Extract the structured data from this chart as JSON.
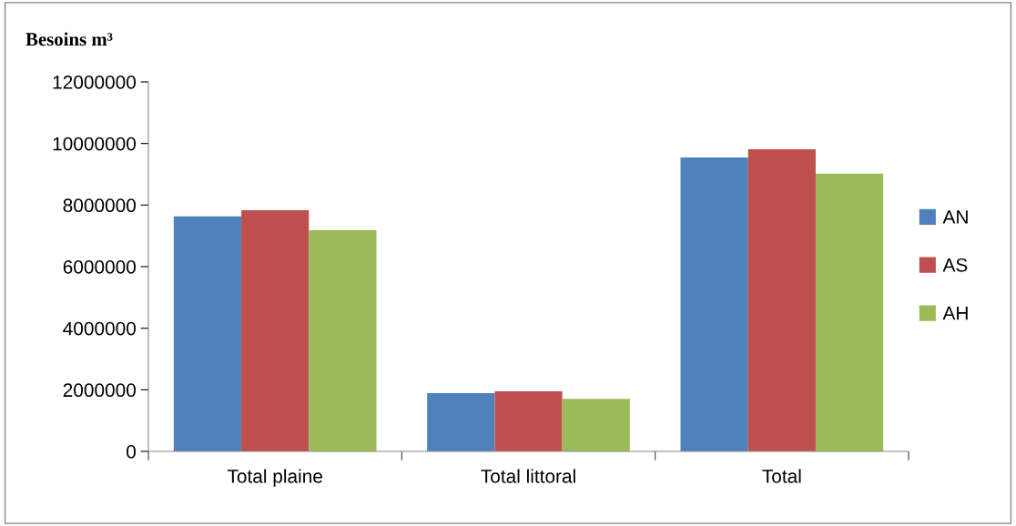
{
  "chart_data": {
    "type": "bar",
    "ylabel": "Besoins m³",
    "categories": [
      "Total plaine",
      "Total littoral",
      "Total"
    ],
    "series": [
      {
        "name": "AN",
        "color": "#4f81bd",
        "values": [
          7630000,
          1890000,
          9550000
        ]
      },
      {
        "name": "AS",
        "color": "#c0504d",
        "values": [
          7830000,
          1950000,
          9810000
        ]
      },
      {
        "name": "AH",
        "color": "#9bbb59",
        "values": [
          7180000,
          1710000,
          9020000
        ]
      }
    ],
    "ylim": [
      0,
      12000000
    ],
    "yticks": [
      0,
      2000000,
      4000000,
      6000000,
      8000000,
      10000000,
      12000000
    ],
    "grid": false,
    "legend": "right"
  }
}
